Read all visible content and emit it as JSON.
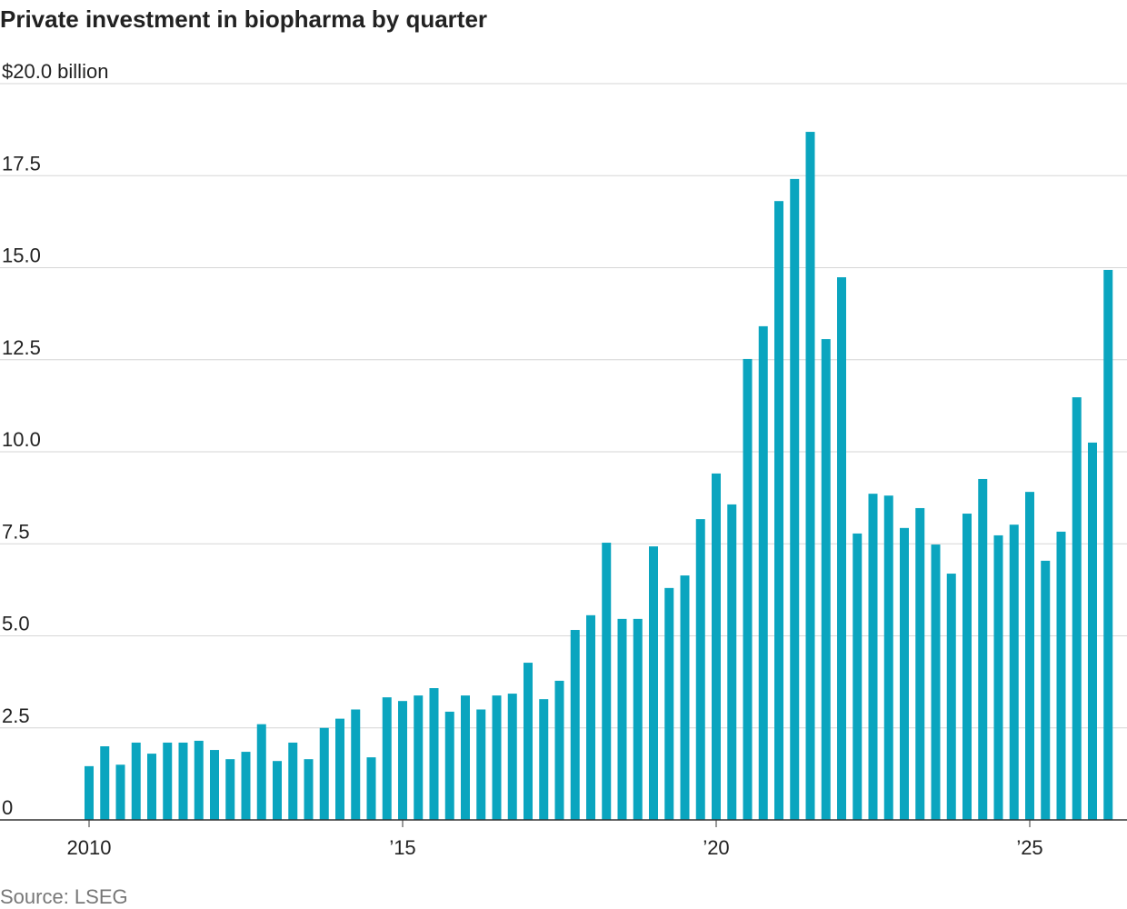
{
  "chart_data": {
    "type": "bar",
    "title": "Private investment in biopharma by quarter",
    "source": "Source: LSEG",
    "categories": [
      "2010",
      null,
      null,
      null,
      null,
      null,
      null,
      null,
      null,
      null,
      null,
      null,
      null,
      null,
      null,
      null,
      null,
      null,
      null,
      null,
      "’15",
      null,
      null,
      null,
      null,
      null,
      null,
      null,
      null,
      null,
      null,
      null,
      null,
      null,
      null,
      null,
      null,
      null,
      null,
      null,
      "’20",
      null,
      null,
      null,
      null,
      null,
      null,
      null,
      null,
      null,
      null,
      null,
      null,
      null,
      null,
      null,
      null,
      null,
      null,
      null,
      "’25",
      null,
      null,
      null,
      null,
      null
    ],
    "values": [
      1.46,
      2.0,
      1.5,
      2.1,
      1.8,
      2.1,
      2.1,
      2.15,
      1.9,
      1.65,
      1.85,
      2.6,
      1.6,
      2.1,
      1.65,
      2.5,
      2.75,
      3.0,
      1.7,
      3.33,
      3.23,
      3.38,
      3.58,
      2.94,
      3.38,
      3.0,
      3.38,
      3.43,
      4.27,
      3.28,
      3.78,
      5.16,
      5.56,
      7.53,
      5.46,
      5.46,
      7.43,
      6.3,
      6.64,
      8.17,
      9.41,
      8.57,
      12.52,
      13.41,
      16.81,
      17.41,
      18.69,
      13.06,
      14.74,
      7.78,
      8.86,
      8.81,
      7.93,
      8.47,
      7.48,
      6.69,
      8.32,
      9.26,
      7.73,
      8.02,
      8.91,
      7.04,
      7.83,
      11.48,
      10.25,
      14.94
    ],
    "color": "#0aa5bf",
    "ylim": [
      0,
      20
    ],
    "yticks": [
      0,
      2.5,
      {
        "value": 5,
        "label": "5.0"
      },
      7.5,
      {
        "value": 10,
        "label": "10.0"
      },
      12.5,
      {
        "value": 15,
        "label": "15.0"
      },
      17.5,
      {
        "value": 20,
        "label": "$20.0 billion"
      }
    ],
    "grid": true
  }
}
